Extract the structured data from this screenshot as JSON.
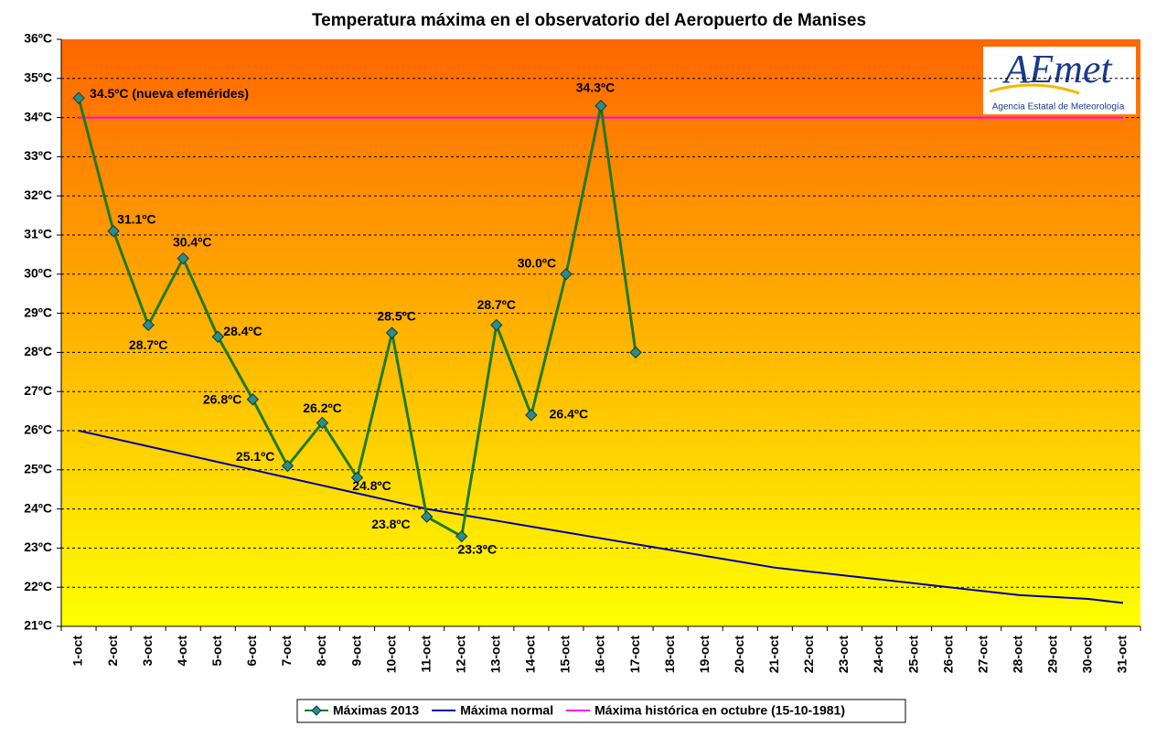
{
  "chart_data": {
    "type": "line",
    "title": "Temperatura máxima en el observatorio del Aeropuerto de Manises",
    "categories": [
      "1-oct",
      "2-oct",
      "3-oct",
      "4-oct",
      "5-oct",
      "6-oct",
      "7-oct",
      "8-oct",
      "9-oct",
      "10-oct",
      "11-oct",
      "12-oct",
      "13-oct",
      "14-oct",
      "15-oct",
      "16-oct",
      "17-oct",
      "18-oct",
      "19-oct",
      "20-oct",
      "21-oct",
      "22-oct",
      "23-oct",
      "24-oct",
      "25-oct",
      "26-oct",
      "27-oct",
      "28-oct",
      "29-oct",
      "30-oct",
      "31-oct"
    ],
    "series": [
      {
        "name": "Máximas 2013",
        "color": "#1f7a1f",
        "marker_color": "#2e8b8b",
        "values": [
          34.5,
          31.1,
          28.7,
          30.4,
          28.4,
          26.8,
          25.1,
          26.2,
          24.8,
          28.5,
          23.8,
          23.3,
          28.7,
          26.4,
          30.0,
          34.3,
          28.0,
          null,
          null,
          null,
          null,
          null,
          null,
          null,
          null,
          null,
          null,
          null,
          null,
          null,
          null
        ],
        "value_labels": [
          "34.5ºC (nueva efemérides)",
          "31.1ºC",
          "28.7ºC",
          "30.4ºC",
          "28.4ºC",
          "26.8ºC",
          "25.1ºC",
          "26.2ºC",
          "24.8ºC",
          "28.5ºC",
          "23.8ºC",
          "23.3ºC",
          "28.7ºC",
          "26.4ºC",
          "30.0ºC",
          "34.3ºC",
          null,
          null,
          null,
          null,
          null,
          null,
          null,
          null,
          null,
          null,
          null,
          null,
          null,
          null,
          null
        ]
      },
      {
        "name": "Máxima normal",
        "color": "#0000a0",
        "values": [
          26.0,
          25.8,
          25.6,
          25.4,
          25.2,
          25.0,
          24.8,
          24.6,
          24.4,
          24.2,
          24.0,
          23.85,
          23.7,
          23.55,
          23.4,
          23.25,
          23.1,
          22.95,
          22.8,
          22.65,
          22.5,
          22.4,
          22.3,
          22.2,
          22.1,
          22.0,
          21.9,
          21.8,
          21.75,
          21.7,
          21.6
        ]
      },
      {
        "name": "Máxima histórica en octubre (15-10-1981)",
        "color": "#ff00ff",
        "values": [
          34,
          34,
          34,
          34,
          34,
          34,
          34,
          34,
          34,
          34,
          34,
          34,
          34,
          34,
          34,
          34,
          34,
          34,
          34,
          34,
          34,
          34,
          34,
          34,
          34,
          34,
          34,
          34,
          34,
          34,
          34
        ]
      }
    ],
    "ylim": [
      21,
      36
    ],
    "yticks": [
      {
        "value": 21,
        "label": "21ºC"
      },
      {
        "value": 22,
        "label": "22ºC"
      },
      {
        "value": 23,
        "label": "23ºC"
      },
      {
        "value": 24,
        "label": "24ºC"
      },
      {
        "value": 25,
        "label": "25ºC"
      },
      {
        "value": 26,
        "label": "26ºC"
      },
      {
        "value": 27,
        "label": "27ºC"
      },
      {
        "value": 28,
        "label": "28ºC"
      },
      {
        "value": 29,
        "label": "29ºC"
      },
      {
        "value": 30,
        "label": "30ºC"
      },
      {
        "value": 31,
        "label": "31ºC"
      },
      {
        "value": 32,
        "label": "32ºC"
      },
      {
        "value": 33,
        "label": "33ºC"
      },
      {
        "value": 34,
        "label": "34ºC"
      },
      {
        "value": 35,
        "label": "35ºC"
      },
      {
        "value": 36,
        "label": "36ºC"
      }
    ],
    "grid": true,
    "legend": "bottom"
  },
  "logo": {
    "wordmark": "AEmet",
    "tagline": "Agencia Estatal de Meteorología"
  }
}
